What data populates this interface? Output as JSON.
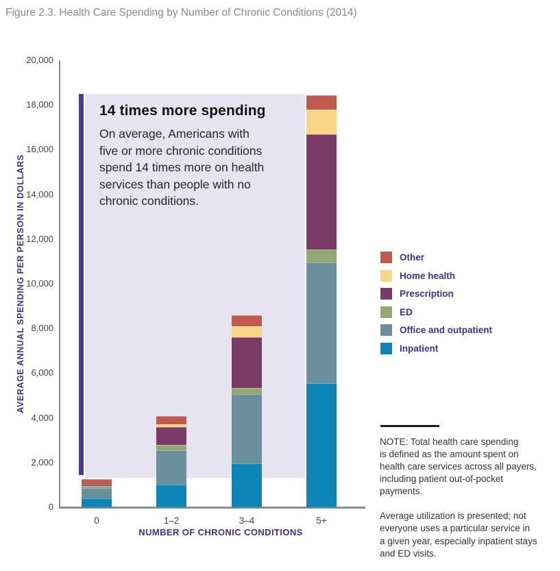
{
  "title": "Figure 2.3. Health Care Spending by Number of Chronic Conditions (2014)",
  "colors": {
    "accent_text": "#3e3192",
    "annotation_bar": "#4a3c92",
    "annotation_box": "#e7e4f1",
    "axis_line": "#8c8c8c",
    "tick_text": "#414141",
    "title_text": "#8a8a8a",
    "note_text": "#333333"
  },
  "annotation": {
    "heading": "14 times more spending",
    "body_lines": [
      "On average, Americans with",
      "five or more chronic conditions",
      "spend 14 times more on health",
      "services than people with no",
      "chronic conditions."
    ]
  },
  "chart_data": {
    "type": "bar",
    "stacked": true,
    "title": "Figure 2.3. Health Care Spending by Number of Chronic Conditions (2014)",
    "categories": [
      "0",
      "1–2",
      "3–4",
      "5+"
    ],
    "series": [
      {
        "name": "Inpatient",
        "color": "#0d86b7",
        "values": [
          390,
          1000,
          1950,
          5550
        ]
      },
      {
        "name": "Office and outpatient",
        "color": "#6b909b",
        "values": [
          470,
          1550,
          3100,
          5400
        ]
      },
      {
        "name": "ED",
        "color": "#93a873",
        "values": [
          80,
          250,
          300,
          600
        ]
      },
      {
        "name": "Prescription",
        "color": "#7b3a65",
        "values": [
          80,
          800,
          2250,
          5150
        ]
      },
      {
        "name": "Home health",
        "color": "#f6d687",
        "values": [
          0,
          120,
          500,
          1100
        ]
      },
      {
        "name": "Other",
        "color": "#c05a4f",
        "values": [
          230,
          350,
          480,
          650
        ]
      }
    ],
    "xlabel": "NUMBER OF CHRONIC CONDITIONS",
    "ylabel": "AVERAGE ANNUAL SPENDING PER PERSON IN DOLLARS",
    "ylim": [
      0,
      20000
    ],
    "y_ticks": [
      "0",
      "2,000",
      "4,000",
      "6,000",
      "8,000",
      "10,000",
      "12,000",
      "14,000",
      "16,000",
      "18,000",
      "20,000"
    ],
    "grid": false,
    "legend_position": "right",
    "legend_order_top_to_bottom": [
      "Other",
      "Home health",
      "Prescription",
      "ED",
      "Office and outpatient",
      "Inpatient"
    ]
  },
  "notes": {
    "paragraphs": [
      [
        "NOTE: Total health care spending",
        "is defined as the amount spent on",
        "health care services across all payers,",
        "including patient out-of-pocket",
        "payments."
      ],
      [
        "Average utilization is presented; not",
        "everyone uses a particular service in",
        "a given year, especially inpatient stays",
        "and ED visits."
      ]
    ]
  }
}
